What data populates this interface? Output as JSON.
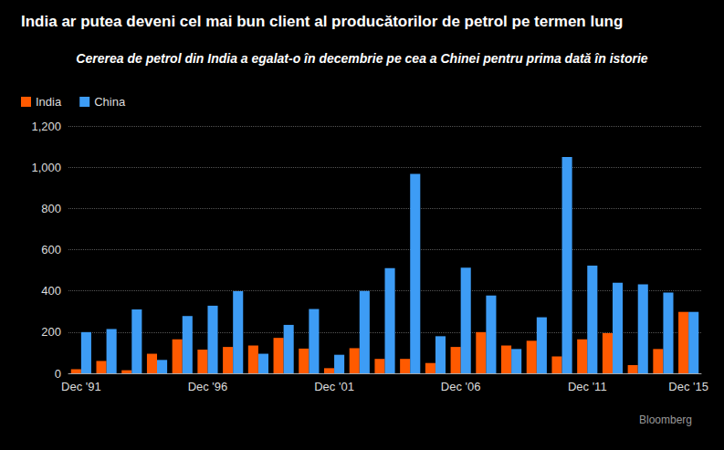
{
  "chart_data": {
    "type": "bar",
    "title": "India ar putea deveni cel mai bun client al producătorilor de petrol pe termen lung",
    "subtitle": "Cererea de petrol din India a egalat-o în decembrie pe cea a Chinei pentru prima dată în istorie",
    "source": "Bloomberg",
    "categories": [
      "Dec '91",
      null,
      null,
      null,
      null,
      "Dec '96",
      null,
      null,
      null,
      null,
      "Dec '01",
      null,
      null,
      null,
      null,
      "Dec '06",
      null,
      null,
      null,
      null,
      "Dec '11",
      null,
      null,
      null,
      "Dec '15"
    ],
    "series": [
      {
        "name": "India",
        "color": "#ff5a00",
        "values": [
          20,
          60,
          15,
          95,
          165,
          115,
          128,
          135,
          172,
          120,
          25,
          122,
          70,
          70,
          50,
          128,
          200,
          135,
          158,
          82,
          165,
          195,
          40,
          118,
          298
        ]
      },
      {
        "name": "China",
        "color": "#3d9cf5",
        "values": [
          200,
          215,
          310,
          65,
          278,
          328,
          398,
          95,
          235,
          312,
          90,
          400,
          510,
          968,
          180,
          512,
          378,
          118,
          272,
          1050,
          522,
          440,
          432,
          392,
          298
        ]
      }
    ],
    "ylim": [
      0,
      1200
    ],
    "yticks": [
      0,
      200,
      400,
      600,
      800,
      {
        "value": 1000,
        "label": "1,000"
      },
      {
        "value": 1200,
        "label": "1,200"
      }
    ],
    "grid": true,
    "legend": "top-left"
  }
}
